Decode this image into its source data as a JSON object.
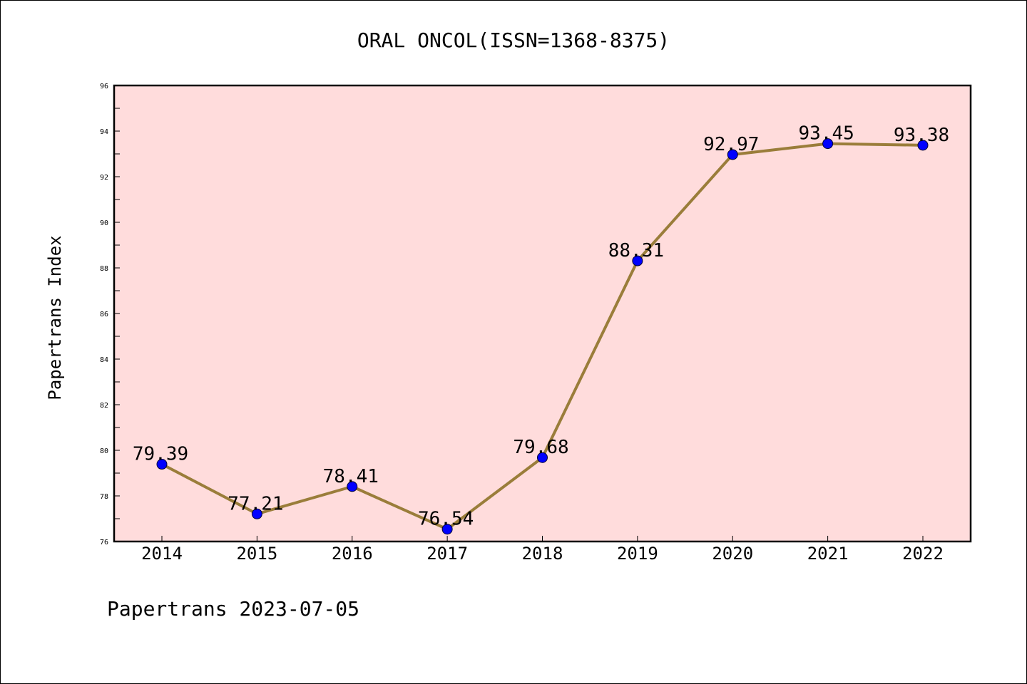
{
  "chart_data": {
    "type": "line",
    "title": "ORAL ONCOL(ISSN=1368-8375)",
    "xlabel": "",
    "ylabel": "Papertrans Index",
    "x": [
      "2014",
      "2015",
      "2016",
      "2017",
      "2018",
      "2019",
      "2020",
      "2021",
      "2022"
    ],
    "values": [
      79.39,
      77.21,
      78.41,
      76.54,
      79.68,
      88.31,
      92.97,
      93.45,
      93.38
    ],
    "value_labels": [
      "79.39",
      "77.21",
      "78.41",
      "76.54",
      "79.68",
      "88.31",
      "92.97",
      "93.45",
      "93.38"
    ],
    "ylim": [
      76,
      96
    ],
    "yticks": [
      "76",
      "78",
      "80",
      "82",
      "84",
      "86",
      "88",
      "90",
      "92",
      "94",
      "96"
    ],
    "grid": false,
    "colors": {
      "plot_background": "#ffdcdc",
      "line": "#9a7d3a",
      "marker": "#0000ff"
    }
  },
  "footer": {
    "text": "Papertrans 2023-07-05"
  }
}
